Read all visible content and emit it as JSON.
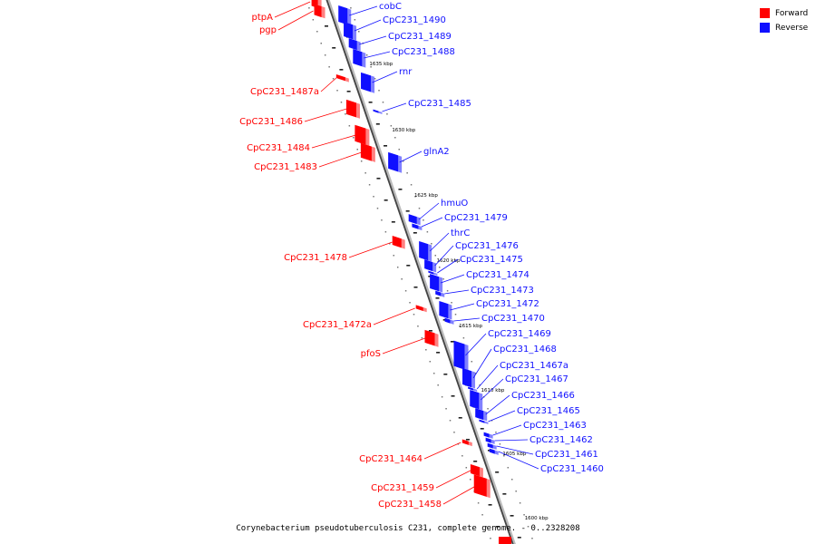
{
  "legend": {
    "forward_label": "Forward",
    "reverse_label": "Reverse",
    "forward_color": "#ff0000",
    "reverse_color": "#1010ff"
  },
  "caption": "Corynebacterium pseudotuberculosis C231, complete genome. - 0..2328208",
  "scale_labels": [
    "1635 kbp",
    "1630 kbp",
    "1625 kbp",
    "1620 kbp",
    "1615 kbp",
    "1610 kbp",
    "1605 kbp",
    "1600 kbp"
  ],
  "forward_genes": [
    "ptpA",
    "pgp",
    "CpC231_1487a",
    "CpC231_1486",
    "CpC231_1484",
    "CpC231_1483",
    "CpC231_1478",
    "CpC231_1472a",
    "pfoS",
    "CpC231_1464",
    "CpC231_1459",
    "CpC231_1458"
  ],
  "reverse_genes": [
    "cobC",
    "CpC231_1490",
    "CpC231_1489",
    "CpC231_1488",
    "rnr",
    "CpC231_1485",
    "glnA2",
    "hmuO",
    "CpC231_1479",
    "thrC",
    "CpC231_1476",
    "CpC231_1475",
    "CpC231_1474",
    "CpC231_1473",
    "CpC231_1472",
    "CpC231_1470",
    "CpC231_1469",
    "CpC231_1468",
    "CpC231_1467a",
    "CpC231_1467",
    "CpC231_1466",
    "CpC231_1465",
    "CpC231_1463",
    "CpC231_1462",
    "CpC231_1461",
    "CpC231_1460"
  ]
}
